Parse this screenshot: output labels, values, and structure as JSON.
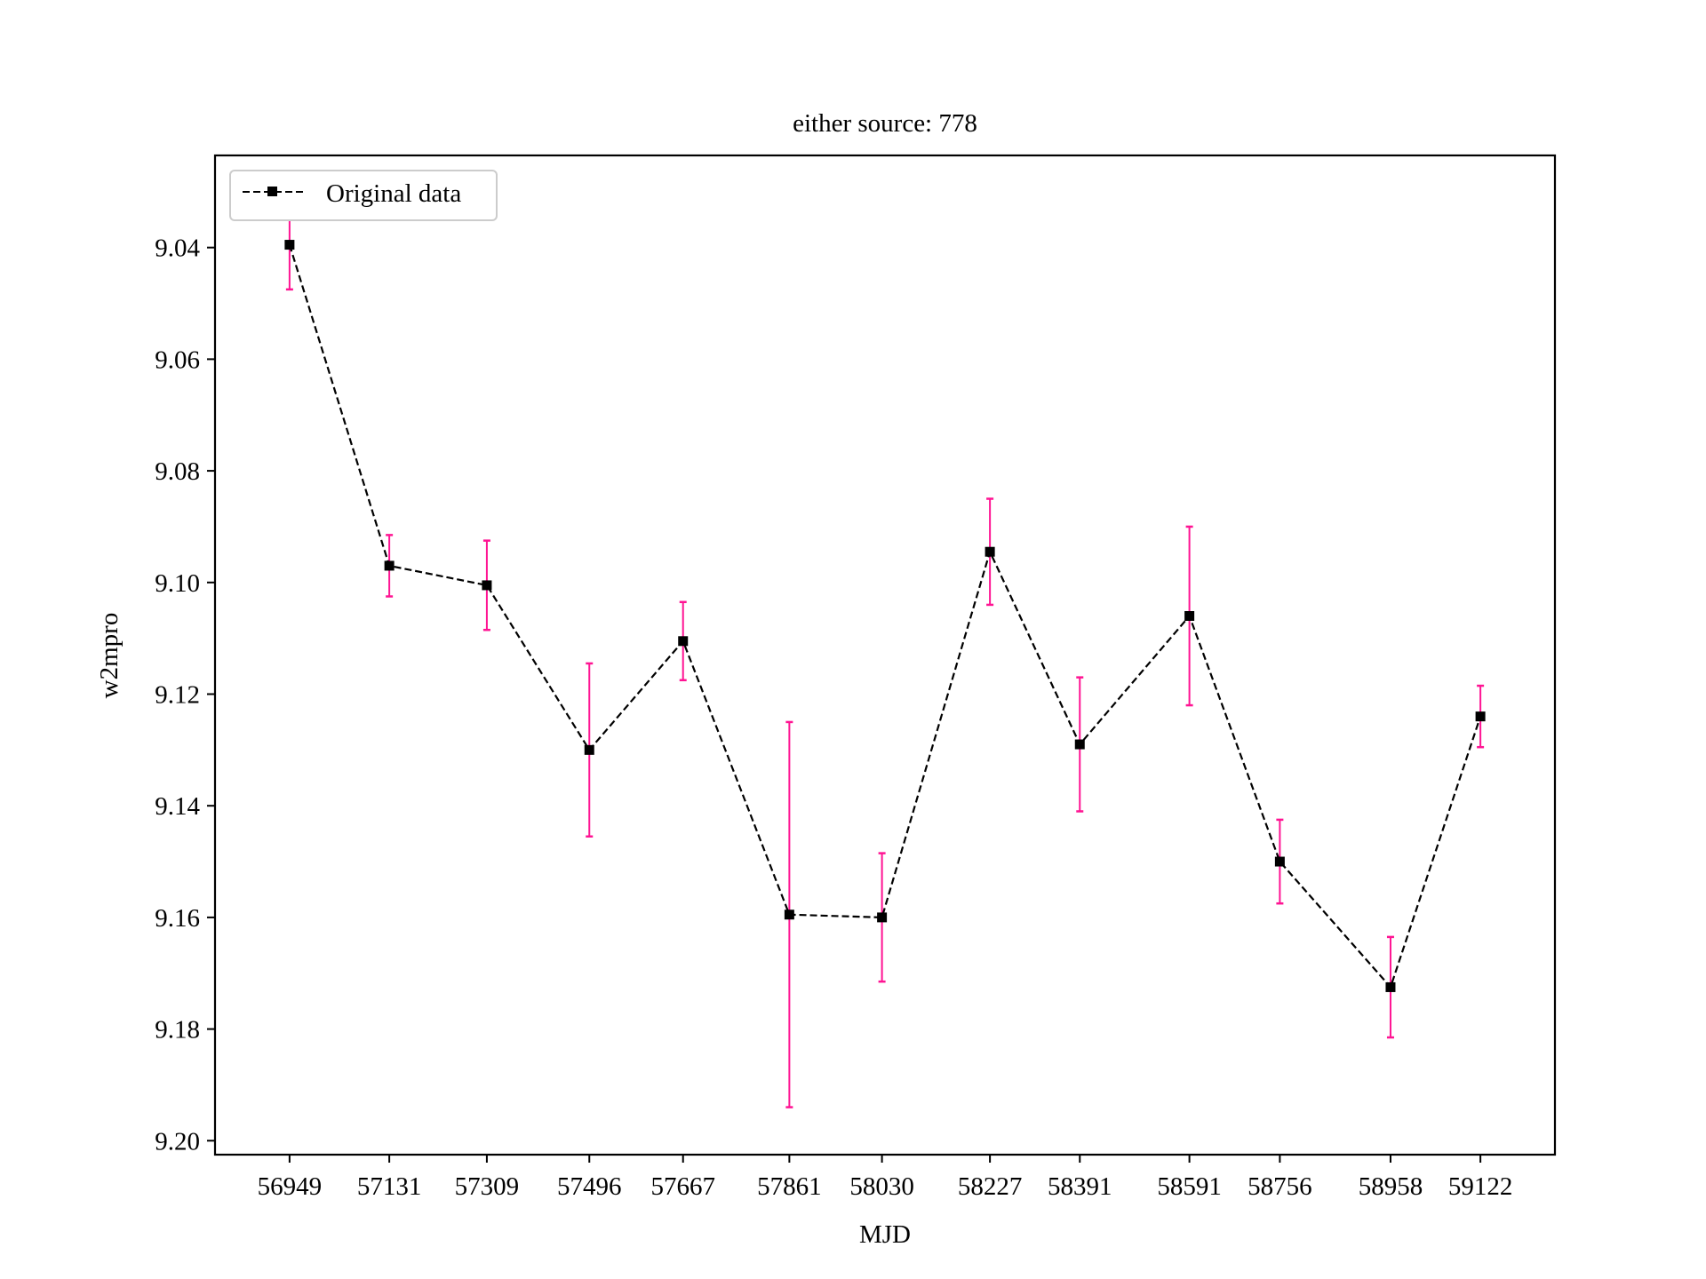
{
  "chart_data": {
    "type": "line",
    "title": "either source: 778",
    "xlabel": "MJD",
    "ylabel": "w2mpro",
    "y_inverted": true,
    "ylim": [
      9.2025,
      9.0235
    ],
    "grid": false,
    "legend": {
      "position": "upper-left",
      "entries": [
        "Original data"
      ]
    },
    "categories": [
      "56949",
      "57131",
      "57309",
      "57496",
      "57667",
      "57861",
      "58030",
      "58227",
      "58391",
      "58591",
      "58756",
      "58958",
      "59122"
    ],
    "x": [
      56949,
      57131,
      57309,
      57496,
      57667,
      57861,
      58030,
      58227,
      58391,
      58591,
      58756,
      58958,
      59122
    ],
    "y_ticks": [
      "9.04",
      "9.06",
      "9.08",
      "9.10",
      "9.12",
      "9.14",
      "9.16",
      "9.18",
      "9.20"
    ],
    "series": [
      {
        "name": "Original data",
        "line_color": "#000000",
        "line_style": "dashed",
        "marker": "square",
        "error_color": "#ff1493",
        "values": [
          9.0395,
          9.097,
          9.1005,
          9.13,
          9.1105,
          9.1595,
          9.16,
          9.0945,
          9.129,
          9.106,
          9.15,
          9.1725,
          9.124
        ],
        "errors": [
          0.008,
          0.0055,
          0.008,
          0.0155,
          0.007,
          0.0345,
          0.0115,
          0.0095,
          0.012,
          0.016,
          0.0075,
          0.009,
          0.0055
        ]
      }
    ]
  }
}
